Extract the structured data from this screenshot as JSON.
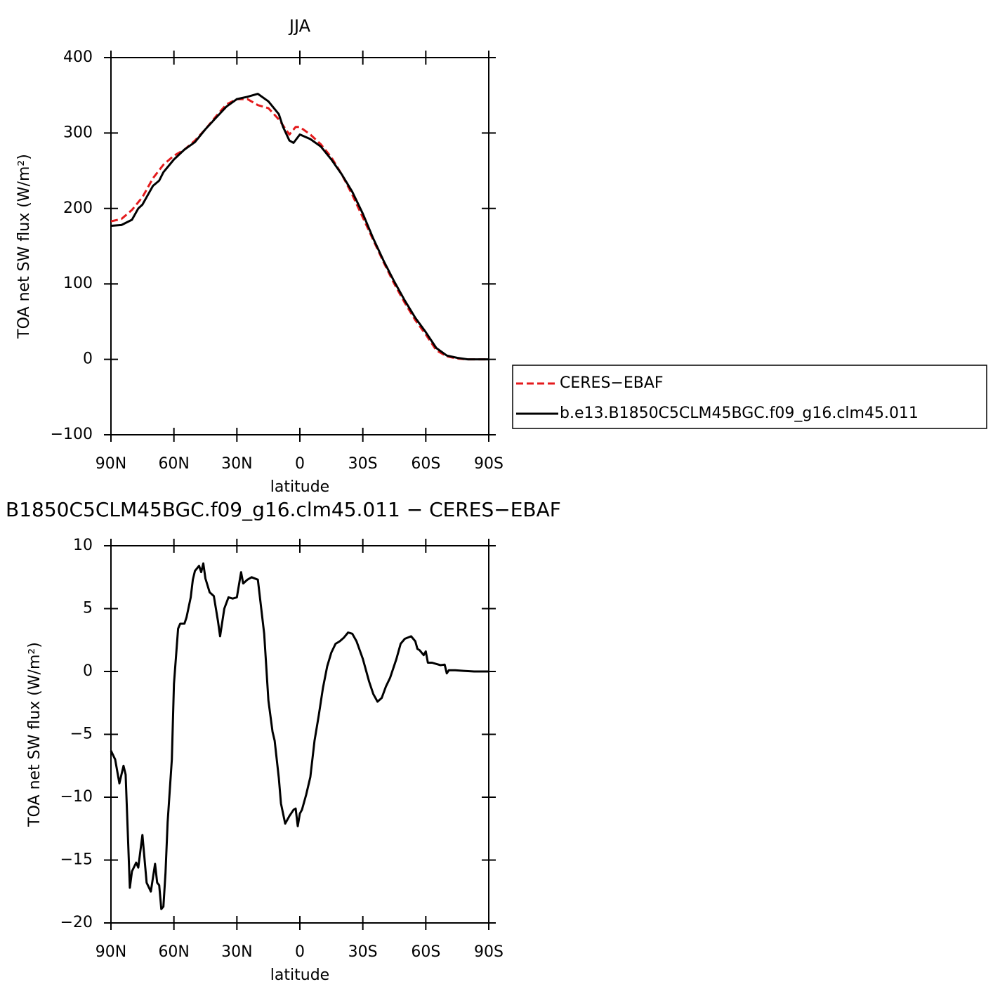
{
  "chart_data": [
    {
      "type": "line",
      "title": "JJA",
      "xlabel": "latitude",
      "ylabel": "TOA net SW flux (W/m²)",
      "xlim": [
        90,
        -90
      ],
      "xticks": [
        {
          "value": 90,
          "label": "90N"
        },
        {
          "value": 60,
          "label": "60N"
        },
        {
          "value": 30,
          "label": "30N"
        },
        0,
        {
          "value": -30,
          "label": "30S"
        },
        {
          "value": -60,
          "label": "60S"
        },
        {
          "value": -90,
          "label": "90S"
        }
      ],
      "ylim": [
        -100,
        400
      ],
      "yticks": [
        {
          "value": -100,
          "label": "−100"
        },
        0,
        100,
        200,
        300,
        400
      ],
      "legend": "outside right",
      "series": [
        {
          "name": "CERES−EBAF",
          "color": "#e41a1c",
          "style": "dashed",
          "x": [
            90,
            85,
            80,
            75,
            70,
            65,
            60,
            55,
            50,
            45,
            40,
            35,
            30,
            25,
            20,
            15,
            10,
            5,
            2,
            0,
            -5,
            -10,
            -15,
            -20,
            -25,
            -30,
            -35,
            -40,
            -45,
            -50,
            -55,
            -60,
            -65,
            -70,
            -75,
            -80,
            -85,
            -90
          ],
          "values": [
            183,
            186,
            198,
            215,
            240,
            258,
            270,
            278,
            290,
            305,
            322,
            338,
            345,
            345,
            337,
            333,
            318,
            298,
            308,
            308,
            298,
            285,
            268,
            245,
            218,
            188,
            158,
            128,
            100,
            75,
            52,
            33,
            12,
            4,
            1,
            0,
            0,
            0
          ]
        },
        {
          "name": "b.e13.B1850C5CLM45BGC.f09_g16.clm45.011",
          "color": "#000000",
          "style": "solid",
          "x": [
            90,
            85,
            80,
            77,
            75,
            72,
            70,
            67,
            65,
            60,
            55,
            50,
            45,
            40,
            35,
            30,
            25,
            20,
            15,
            10,
            8,
            5,
            3,
            0,
            -5,
            -10,
            -15,
            -20,
            -25,
            -30,
            -35,
            -40,
            -45,
            -50,
            -55,
            -60,
            -65,
            -70,
            -75,
            -80,
            -85,
            -90
          ],
          "values": [
            177,
            178,
            185,
            200,
            205,
            220,
            230,
            237,
            248,
            265,
            278,
            288,
            305,
            320,
            335,
            345,
            348,
            352,
            342,
            325,
            308,
            290,
            287,
            298,
            292,
            282,
            265,
            245,
            222,
            193,
            160,
            130,
            103,
            78,
            55,
            36,
            15,
            5,
            2,
            0,
            0,
            0
          ]
        }
      ]
    },
    {
      "type": "line",
      "title": "B1850C5CLM45BGC.f09_g16.clm45.011 − CERES−EBAF",
      "xlabel": "latitude",
      "ylabel": "TOA net SW flux (W/m²)",
      "xlim": [
        90,
        -90
      ],
      "xticks": [
        {
          "value": 90,
          "label": "90N"
        },
        {
          "value": 60,
          "label": "60N"
        },
        {
          "value": 30,
          "label": "30N"
        },
        0,
        {
          "value": -30,
          "label": "30S"
        },
        {
          "value": -60,
          "label": "60S"
        },
        {
          "value": -90,
          "label": "90S"
        }
      ],
      "ylim": [
        -20,
        10
      ],
      "yticks": [
        {
          "value": -20,
          "label": "−20"
        },
        {
          "value": -15,
          "label": "−15"
        },
        {
          "value": -10,
          "label": "−10"
        },
        {
          "value": -5,
          "label": "−5"
        },
        0,
        5,
        10
      ],
      "series": [
        {
          "color": "#000000",
          "style": "solid",
          "x": [
            90,
            88,
            86,
            84,
            83,
            81,
            80,
            78,
            77,
            75,
            73,
            71,
            69,
            68,
            67,
            66,
            65,
            64,
            63,
            62,
            61,
            60,
            58,
            57,
            55,
            54,
            52,
            51,
            50,
            48,
            47,
            46,
            45,
            43,
            41,
            39,
            38,
            36,
            34,
            32,
            30,
            28,
            27,
            25,
            23,
            20,
            17,
            15,
            13,
            12,
            10,
            9,
            7,
            5,
            3,
            2,
            1,
            0,
            -1,
            -3,
            -5,
            -7,
            -9,
            -11,
            -13,
            -15,
            -17,
            -19,
            -21,
            -23,
            -25,
            -27,
            -30,
            -33,
            -35,
            -37,
            -39,
            -41,
            -43,
            -46,
            -48,
            -50,
            -53,
            -55,
            -56,
            -57,
            -59,
            -60,
            -61,
            -63,
            -65,
            -67,
            -69,
            -70,
            -71,
            -74,
            -78,
            -83,
            -90
          ],
          "values": [
            -6.3,
            -7,
            -8.9,
            -7.5,
            -8.2,
            -17.2,
            -15.9,
            -15.2,
            -15.6,
            -13,
            -16.8,
            -17.5,
            -15.3,
            -16.8,
            -17,
            -18.9,
            -18.7,
            -16,
            -12,
            -9.5,
            -7,
            -1,
            3.4,
            3.8,
            3.8,
            4.3,
            5.9,
            7.3,
            8.0,
            8.4,
            7.9,
            8.6,
            7.4,
            6.3,
            6.0,
            4.0,
            2.8,
            5.0,
            5.9,
            5.8,
            5.9,
            7.9,
            7.0,
            7.3,
            7.5,
            7.3,
            3.0,
            -2.3,
            -4.8,
            -5.5,
            -8.5,
            -10.5,
            -12.1,
            -11.5,
            -11.0,
            -10.9,
            -12.3,
            -11.3,
            -11,
            -9.8,
            -8.4,
            -5.5,
            -3.5,
            -1.3,
            0.4,
            1.5,
            2.2,
            2.4,
            2.7,
            3.1,
            3.0,
            2.4,
            1.0,
            -0.8,
            -1.8,
            -2.4,
            -2.1,
            -1.2,
            -0.5,
            1.0,
            2.2,
            2.6,
            2.8,
            2.4,
            1.8,
            1.7,
            1.3,
            1.6,
            0.7,
            0.7,
            0.6,
            0.5,
            0.55,
            -0.15,
            0.1,
            0.1,
            0.05,
            0,
            0
          ]
        }
      ]
    }
  ]
}
